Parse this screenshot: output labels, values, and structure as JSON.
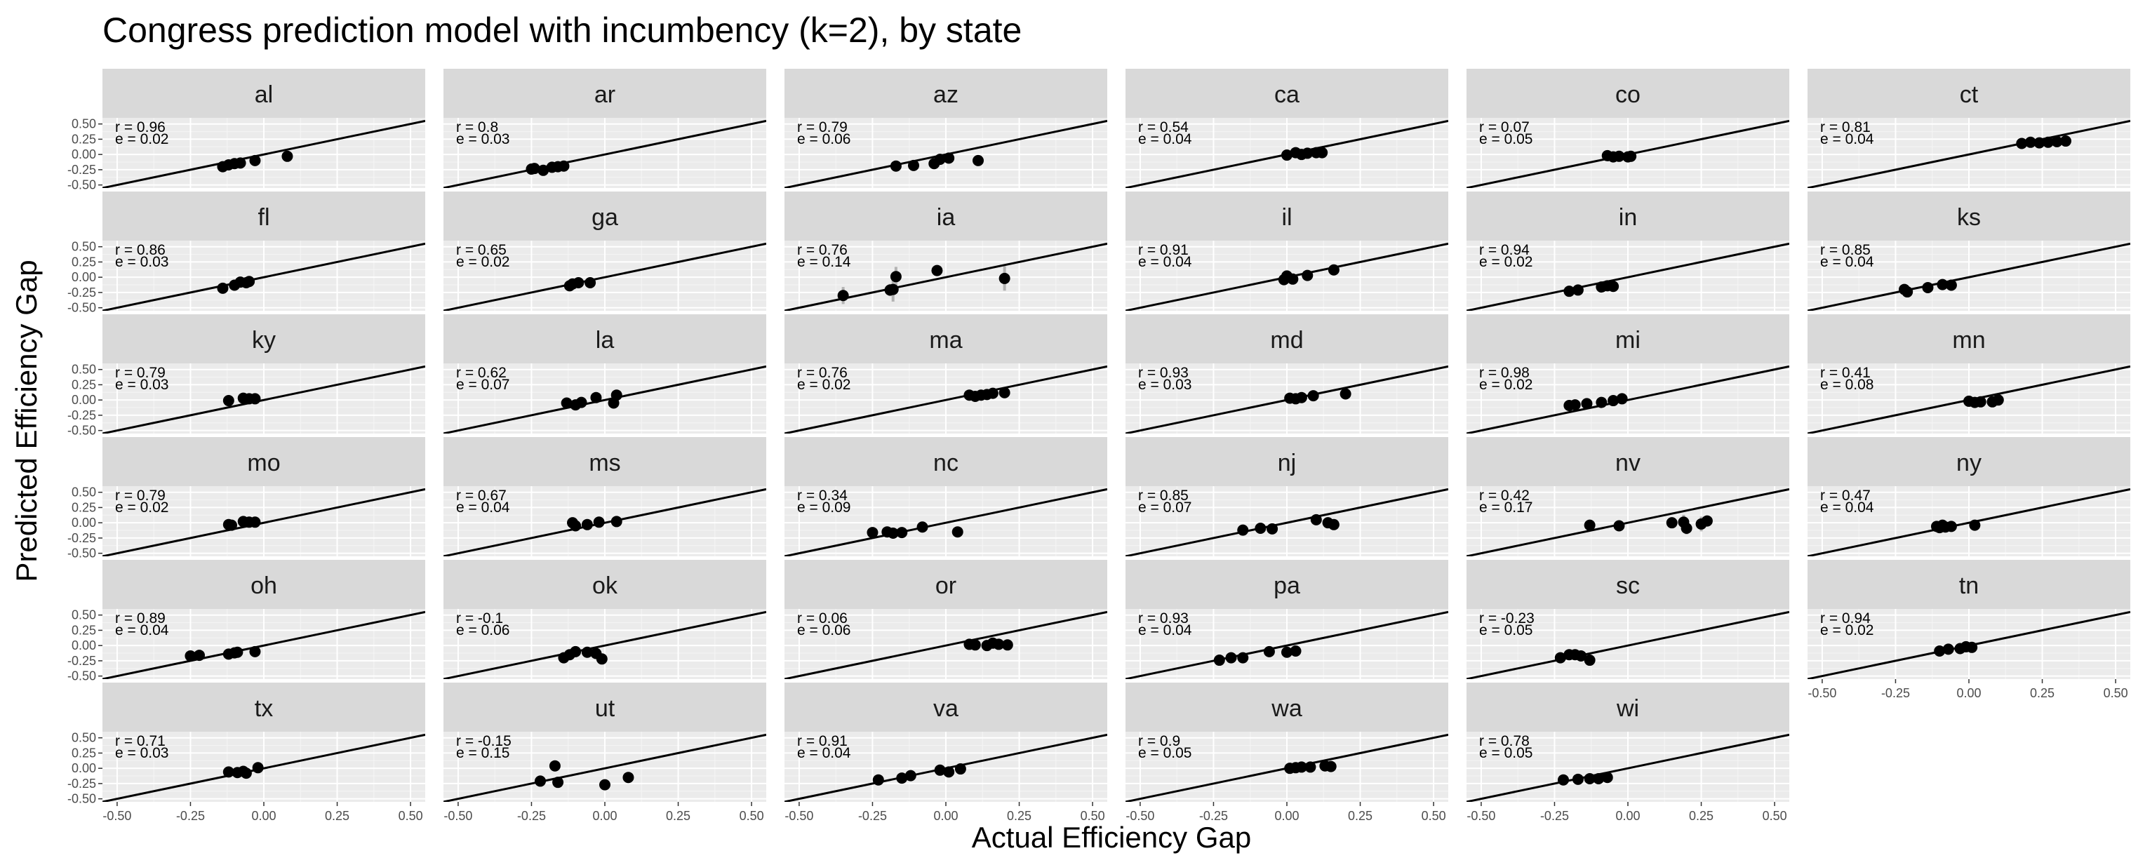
{
  "chart_data": {
    "type": "scatter",
    "title": "Congress prediction model with incumbency (k=2), by state",
    "xlabel": "Actual Efficiency Gap",
    "ylabel": "Predicted Efficiency Gap",
    "xlim": [
      -0.55,
      0.55
    ],
    "ylim": [
      -0.55,
      0.6
    ],
    "x_ticks": [
      "-0.50",
      "-0.25",
      "0.00",
      "0.25",
      "0.50"
    ],
    "y_ticks": [
      "-0.50",
      "-0.25",
      "0.00",
      "0.25",
      "0.50"
    ],
    "reference_line": "y = x",
    "grid": true,
    "columns": 6,
    "panels": [
      {
        "state": "al",
        "r": "r = 0.96",
        "e": "e = 0.02",
        "x": [
          -0.14,
          -0.12,
          -0.1,
          -0.08,
          -0.03,
          0.08
        ],
        "y": [
          -0.2,
          -0.17,
          -0.15,
          -0.14,
          -0.1,
          -0.03
        ]
      },
      {
        "state": "ar",
        "r": "r = 0.8",
        "e": "e = 0.03",
        "x": [
          -0.25,
          -0.24,
          -0.21,
          -0.18,
          -0.16,
          -0.14
        ],
        "y": [
          -0.24,
          -0.23,
          -0.26,
          -0.21,
          -0.2,
          -0.19
        ]
      },
      {
        "state": "az",
        "r": "r = 0.79",
        "e": "e = 0.06",
        "x": [
          -0.17,
          -0.11,
          -0.04,
          -0.02,
          0.01,
          0.11
        ],
        "y": [
          -0.19,
          -0.18,
          -0.15,
          -0.08,
          -0.06,
          -0.1
        ]
      },
      {
        "state": "ca",
        "r": "r = 0.54",
        "e": "e = 0.04",
        "x": [
          0.0,
          0.03,
          0.05,
          0.07,
          0.1,
          0.12
        ],
        "y": [
          -0.01,
          0.03,
          0.0,
          0.02,
          0.03,
          0.03
        ]
      },
      {
        "state": "co",
        "r": "r = 0.07",
        "e": "e = 0.05",
        "x": [
          -0.07,
          -0.05,
          -0.03,
          0.0,
          0.01
        ],
        "y": [
          -0.02,
          -0.04,
          -0.03,
          -0.04,
          -0.03
        ]
      },
      {
        "state": "ct",
        "r": "r = 0.81",
        "e": "e = 0.04",
        "x": [
          0.18,
          0.21,
          0.24,
          0.27,
          0.3,
          0.33
        ],
        "y": [
          0.18,
          0.2,
          0.19,
          0.2,
          0.21,
          0.22
        ]
      },
      {
        "state": "fl",
        "r": "r = 0.86",
        "e": "e = 0.03",
        "x": [
          -0.14,
          -0.1,
          -0.08,
          -0.06,
          -0.05
        ],
        "y": [
          -0.18,
          -0.13,
          -0.08,
          -0.09,
          -0.07
        ]
      },
      {
        "state": "ga",
        "r": "r = 0.65",
        "e": "e = 0.02",
        "x": [
          -0.12,
          -0.11,
          -0.09,
          -0.05
        ],
        "y": [
          -0.14,
          -0.11,
          -0.09,
          -0.09
        ]
      },
      {
        "state": "ia",
        "r": "r = 0.76",
        "e": "e = 0.14",
        "x": [
          -0.35,
          -0.19,
          -0.18,
          -0.17,
          -0.03,
          0.2
        ],
        "y": [
          -0.3,
          -0.21,
          -0.2,
          0.01,
          0.11,
          -0.02
        ],
        "err": [
          0.14,
          0.1,
          0.2,
          0.16,
          0.04,
          0.2
        ]
      },
      {
        "state": "il",
        "r": "r = 0.91",
        "e": "e = 0.04",
        "x": [
          -0.01,
          0.0,
          0.02,
          0.07,
          0.16
        ],
        "y": [
          -0.04,
          0.02,
          -0.03,
          0.03,
          0.12
        ]
      },
      {
        "state": "in",
        "r": "r = 0.94",
        "e": "e = 0.02",
        "x": [
          -0.2,
          -0.17,
          -0.09,
          -0.07,
          -0.05
        ],
        "y": [
          -0.23,
          -0.21,
          -0.16,
          -0.14,
          -0.15
        ]
      },
      {
        "state": "ks",
        "r": "r = 0.85",
        "e": "e = 0.04",
        "x": [
          -0.22,
          -0.21,
          -0.14,
          -0.09,
          -0.06
        ],
        "y": [
          -0.2,
          -0.24,
          -0.17,
          -0.12,
          -0.13
        ],
        "err": [
          0,
          0,
          0.06,
          0.03,
          0
        ]
      },
      {
        "state": "ky",
        "r": "r = 0.79",
        "e": "e = 0.03",
        "x": [
          -0.12,
          -0.07,
          -0.05,
          -0.03
        ],
        "y": [
          -0.01,
          0.03,
          0.02,
          0.02
        ]
      },
      {
        "state": "la",
        "r": "r = 0.62",
        "e": "e = 0.07",
        "x": [
          -0.13,
          -0.1,
          -0.08,
          -0.03,
          0.03,
          0.04
        ],
        "y": [
          -0.05,
          -0.08,
          -0.04,
          0.04,
          -0.05,
          0.08
        ]
      },
      {
        "state": "ma",
        "r": "r = 0.76",
        "e": "e = 0.02",
        "x": [
          0.08,
          0.1,
          0.12,
          0.14,
          0.16,
          0.2
        ],
        "y": [
          0.08,
          0.06,
          0.08,
          0.09,
          0.11,
          0.12
        ]
      },
      {
        "state": "md",
        "r": "r = 0.93",
        "e": "e = 0.03",
        "x": [
          0.01,
          0.03,
          0.05,
          0.09,
          0.2
        ],
        "y": [
          0.03,
          0.02,
          0.04,
          0.07,
          0.1
        ]
      },
      {
        "state": "mi",
        "r": "r = 0.98",
        "e": "e = 0.02",
        "x": [
          -0.2,
          -0.18,
          -0.14,
          -0.09,
          -0.05,
          -0.02
        ],
        "y": [
          -0.09,
          -0.08,
          -0.06,
          -0.04,
          -0.01,
          0.02
        ]
      },
      {
        "state": "mn",
        "r": "r = 0.41",
        "e": "e = 0.08",
        "x": [
          0.0,
          0.02,
          0.04,
          0.08,
          0.1
        ],
        "y": [
          -0.02,
          -0.04,
          -0.03,
          -0.03,
          0.0
        ],
        "err": [
          0,
          0,
          0.03,
          0.05,
          0
        ]
      },
      {
        "state": "mo",
        "r": "r = 0.79",
        "e": "e = 0.02",
        "x": [
          -0.12,
          -0.11,
          -0.07,
          -0.05,
          -0.03
        ],
        "y": [
          -0.03,
          -0.04,
          0.02,
          0.01,
          0.01
        ]
      },
      {
        "state": "ms",
        "r": "r = 0.67",
        "e": "e = 0.04",
        "x": [
          -0.11,
          -0.1,
          -0.06,
          -0.02,
          0.04
        ],
        "y": [
          0.0,
          -0.05,
          -0.03,
          0.01,
          0.02
        ]
      },
      {
        "state": "nc",
        "r": "r = 0.34",
        "e": "e = 0.09",
        "x": [
          -0.25,
          -0.2,
          -0.18,
          -0.15,
          -0.08,
          0.04
        ],
        "y": [
          -0.16,
          -0.15,
          -0.17,
          -0.16,
          -0.07,
          -0.15
        ]
      },
      {
        "state": "nj",
        "r": "r = 0.85",
        "e": "e = 0.07",
        "x": [
          -0.15,
          -0.09,
          -0.05,
          0.1,
          0.14,
          0.16
        ],
        "y": [
          -0.12,
          -0.09,
          -0.1,
          0.05,
          0.0,
          -0.03
        ]
      },
      {
        "state": "nv",
        "r": "r = 0.42",
        "e": "e = 0.17",
        "x": [
          -0.13,
          -0.03,
          0.15,
          0.19,
          0.2,
          0.25,
          0.27
        ],
        "y": [
          -0.04,
          -0.05,
          0.0,
          0.01,
          -0.09,
          -0.02,
          0.03
        ],
        "err": [
          0,
          0,
          0.07,
          0.12,
          0.1,
          0.12,
          0.07
        ]
      },
      {
        "state": "ny",
        "r": "r = 0.47",
        "e": "e = 0.04",
        "x": [
          -0.11,
          -0.1,
          -0.09,
          -0.08,
          -0.06,
          0.02
        ],
        "y": [
          -0.06,
          -0.08,
          -0.04,
          -0.07,
          -0.06,
          -0.04
        ]
      },
      {
        "state": "oh",
        "r": "r = 0.89",
        "e": "e = 0.04",
        "x": [
          -0.25,
          -0.22,
          -0.12,
          -0.1,
          -0.09,
          -0.03
        ],
        "y": [
          -0.17,
          -0.16,
          -0.14,
          -0.12,
          -0.11,
          -0.1
        ]
      },
      {
        "state": "ok",
        "r": "r = -0.1",
        "e": "e = 0.06",
        "x": [
          -0.14,
          -0.12,
          -0.1,
          -0.06,
          -0.03,
          -0.01
        ],
        "y": [
          -0.2,
          -0.15,
          -0.1,
          -0.11,
          -0.13,
          -0.22
        ]
      },
      {
        "state": "or",
        "r": "r = 0.06",
        "e": "e = 0.06",
        "x": [
          0.08,
          0.1,
          0.14,
          0.16,
          0.18,
          0.21
        ],
        "y": [
          0.02,
          0.01,
          0.0,
          0.04,
          0.02,
          0.01
        ]
      },
      {
        "state": "pa",
        "r": "r = 0.93",
        "e": "e = 0.04",
        "x": [
          -0.23,
          -0.19,
          -0.15,
          -0.06,
          0.0,
          0.03
        ],
        "y": [
          -0.24,
          -0.2,
          -0.2,
          -0.1,
          -0.11,
          -0.09
        ]
      },
      {
        "state": "sc",
        "r": "r = -0.23",
        "e": "e = 0.05",
        "x": [
          -0.23,
          -0.2,
          -0.18,
          -0.16,
          -0.13
        ],
        "y": [
          -0.2,
          -0.15,
          -0.15,
          -0.17,
          -0.24
        ]
      },
      {
        "state": "tn",
        "r": "r = 0.94",
        "e": "e = 0.02",
        "x": [
          -0.1,
          -0.07,
          -0.03,
          -0.01,
          0.01
        ],
        "y": [
          -0.09,
          -0.06,
          -0.05,
          -0.02,
          -0.03
        ]
      },
      {
        "state": "tx",
        "r": "r = 0.71",
        "e": "e = 0.03",
        "x": [
          -0.12,
          -0.09,
          -0.07,
          -0.06,
          -0.02
        ],
        "y": [
          -0.06,
          -0.07,
          -0.05,
          -0.08,
          0.01
        ]
      },
      {
        "state": "ut",
        "r": "r = -0.15",
        "e": "e = 0.15",
        "x": [
          -0.22,
          -0.17,
          -0.16,
          0.0,
          0.08
        ],
        "y": [
          -0.21,
          0.04,
          -0.23,
          -0.27,
          -0.15
        ]
      },
      {
        "state": "va",
        "r": "r = 0.91",
        "e": "e = 0.04",
        "x": [
          -0.23,
          -0.15,
          -0.12,
          -0.02,
          0.01,
          0.05
        ],
        "y": [
          -0.19,
          -0.16,
          -0.12,
          -0.03,
          -0.06,
          -0.01
        ]
      },
      {
        "state": "wa",
        "r": "r = 0.9",
        "e": "e = 0.05",
        "x": [
          0.01,
          0.03,
          0.05,
          0.08,
          0.13,
          0.15
        ],
        "y": [
          0.0,
          0.01,
          0.02,
          0.02,
          0.04,
          0.03
        ]
      },
      {
        "state": "wi",
        "r": "r = 0.78",
        "e": "e = 0.05",
        "x": [
          -0.22,
          -0.17,
          -0.13,
          -0.1,
          -0.07
        ],
        "y": [
          -0.19,
          -0.18,
          -0.17,
          -0.17,
          -0.15
        ]
      }
    ]
  }
}
